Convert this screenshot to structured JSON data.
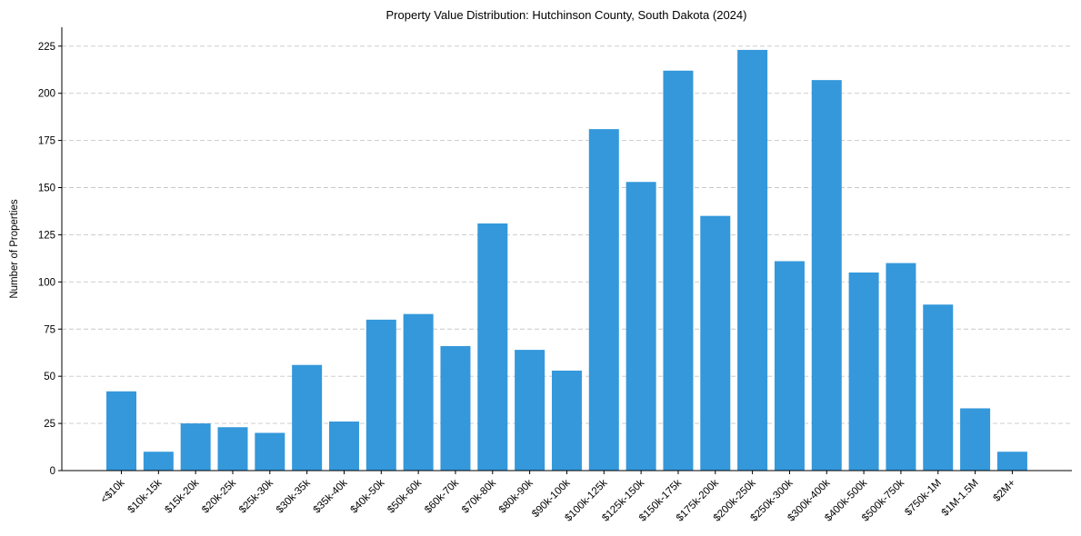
{
  "chart_data": {
    "type": "bar",
    "title": "Property Value Distribution: Hutchinson County, South Dakota (2024)",
    "xlabel": "",
    "ylabel": "Number of Properties",
    "ylim": [
      0,
      235
    ],
    "yticks": [
      0,
      25,
      50,
      75,
      100,
      125,
      150,
      175,
      200,
      225
    ],
    "grid": "horizontal-dashed",
    "bar_color": "#3498db",
    "categories": [
      "<$10k",
      "$10k-15k",
      "$15k-20k",
      "$20k-25k",
      "$25k-30k",
      "$30k-35k",
      "$35k-40k",
      "$40k-50k",
      "$50k-60k",
      "$60k-70k",
      "$70k-80k",
      "$80k-90k",
      "$90k-100k",
      "$100k-125k",
      "$125k-150k",
      "$150k-175k",
      "$175k-200k",
      "$200k-250k",
      "$250k-300k",
      "$300k-400k",
      "$400k-500k",
      "$500k-750k",
      "$750k-1M",
      "$1M-1.5M",
      "$2M+"
    ],
    "values": [
      42,
      10,
      25,
      23,
      20,
      56,
      26,
      80,
      83,
      66,
      131,
      64,
      53,
      181,
      153,
      212,
      135,
      223,
      111,
      207,
      105,
      110,
      88,
      33,
      10
    ]
  }
}
